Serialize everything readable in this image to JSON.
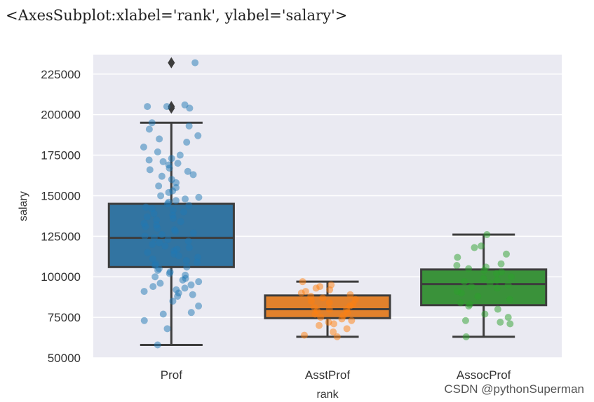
{
  "header": {
    "repr_text": "<AxesSubplot:xlabel='rank', ylabel='salary'>"
  },
  "watermark": "CSDN @pythonSuperman",
  "chart_data": {
    "type": "boxplot",
    "xlabel": "rank",
    "ylabel": "salary",
    "ylim": [
      50000,
      237000
    ],
    "yticks": [
      50000,
      75000,
      100000,
      125000,
      150000,
      175000,
      200000,
      225000
    ],
    "grid": true,
    "legend": "none",
    "background_color": "#eaeaf2",
    "categories": [
      "Prof",
      "AsstProf",
      "AssocProf"
    ],
    "boxes": [
      {
        "category": "Prof",
        "color": "#3274a1",
        "point_color": "#1f77b4",
        "whisker_low": 58000,
        "q1": 106000,
        "median": 124000,
        "q3": 145000,
        "whisker_high": 195000,
        "outliers": [
          204000,
          205000,
          232000
        ],
        "points": [
          232000,
          206000,
          205000,
          205000,
          204000,
          195000,
          193000,
          191000,
          187000,
          185000,
          183000,
          180000,
          177000,
          175000,
          173000,
          172000,
          171000,
          170000,
          169000,
          167000,
          166000,
          165000,
          163000,
          162000,
          160000,
          158000,
          156000,
          155000,
          153000,
          152000,
          150000,
          149000,
          148000,
          147000,
          146000,
          145000,
          144000,
          143000,
          142000,
          141000,
          140000,
          139000,
          138000,
          137000,
          136000,
          135000,
          134000,
          133000,
          132000,
          131000,
          130000,
          129000,
          128000,
          127000,
          126000,
          125000,
          124000,
          123000,
          122000,
          121000,
          120000,
          119000,
          118000,
          117000,
          116000,
          115000,
          114000,
          113000,
          112000,
          111000,
          110000,
          109000,
          108000,
          107000,
          106000,
          105000,
          104000,
          103000,
          102000,
          101000,
          100000,
          99000,
          98000,
          97000,
          96000,
          95000,
          94000,
          93000,
          92000,
          91000,
          90000,
          89000,
          88000,
          85000,
          82000,
          78000,
          77000,
          73000,
          68000,
          58000
        ]
      },
      {
        "category": "AsstProf",
        "color": "#e1812c",
        "point_color": "#ff7f0e",
        "whisker_low": 63000,
        "q1": 74500,
        "median": 80000,
        "q3": 88500,
        "whisker_high": 97000,
        "outliers": [],
        "points": [
          97000,
          95000,
          94000,
          93000,
          92000,
          91000,
          90000,
          89000,
          88000,
          87000,
          86000,
          85000,
          84000,
          83000,
          82000,
          81000,
          80000,
          80000,
          79000,
          78000,
          77000,
          76000,
          75000,
          74000,
          73000,
          72000,
          71000,
          70000,
          68000,
          66000,
          64000,
          63000
        ]
      },
      {
        "category": "AssocProf",
        "color": "#3a923a",
        "point_color": "#2ca02c",
        "whisker_low": 63000,
        "q1": 82500,
        "median": 95500,
        "q3": 104500,
        "whisker_high": 126000,
        "outliers": [],
        "points": [
          126000,
          119000,
          118000,
          114000,
          112000,
          108000,
          107000,
          106000,
          105000,
          104000,
          103000,
          102000,
          100000,
          99000,
          98000,
          97000,
          96000,
          95000,
          94000,
          93000,
          91000,
          90000,
          88000,
          86000,
          84000,
          83000,
          82000,
          80000,
          77000,
          75000,
          73000,
          72000,
          71000,
          63000
        ]
      }
    ]
  }
}
